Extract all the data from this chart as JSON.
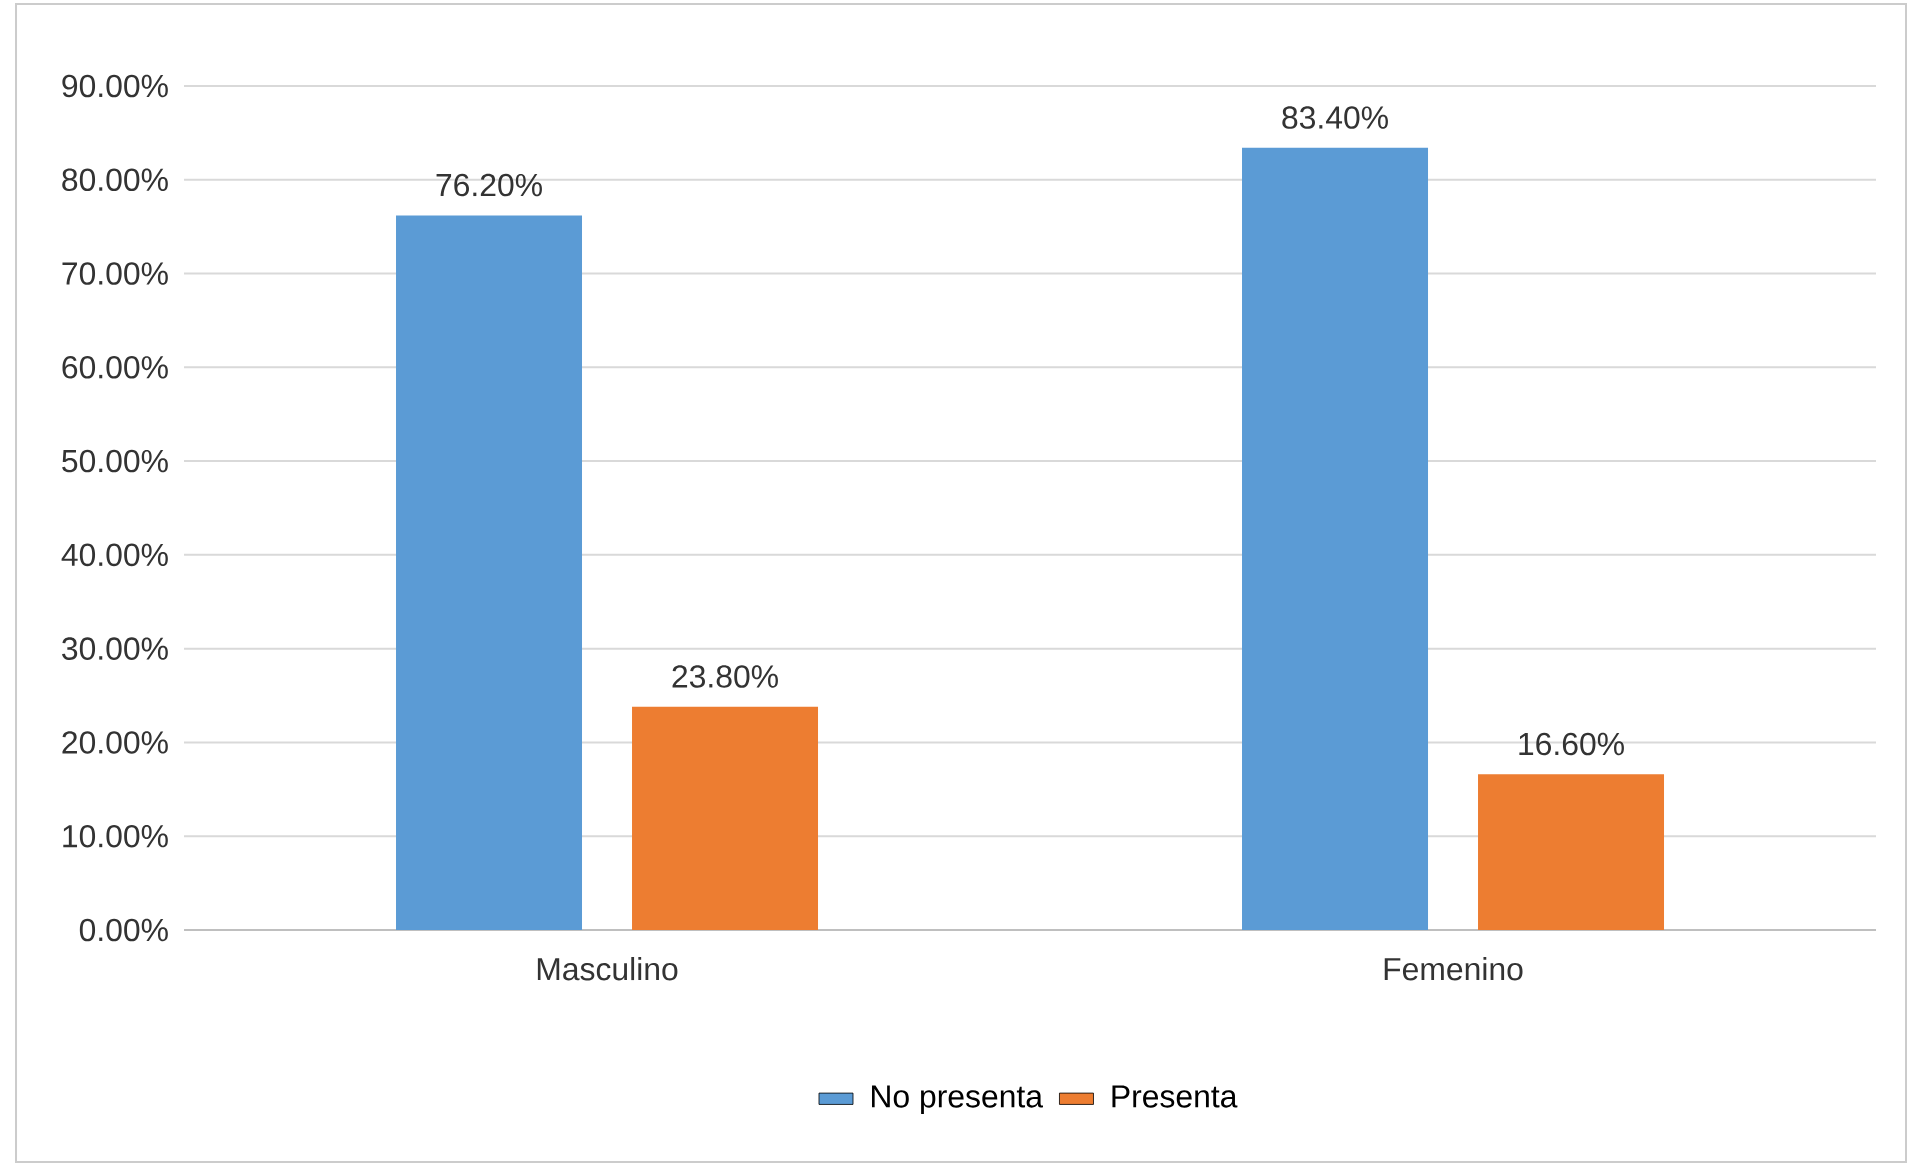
{
  "chart_data": {
    "type": "bar",
    "categories": [
      "Masculino",
      "Femenino"
    ],
    "series": [
      {
        "name": "No presenta",
        "color": "#5b9bd5",
        "values": [
          76.2,
          83.4
        ],
        "value_labels": [
          "76.20%",
          "83.40%"
        ]
      },
      {
        "name": "Presenta",
        "color": "#ed7d31",
        "values": [
          23.8,
          16.6
        ],
        "value_labels": [
          "23.80%",
          "16.60%"
        ]
      }
    ],
    "ylim": [
      0,
      90
    ],
    "yticks": [
      {
        "value": 0,
        "label": "0.00%"
      },
      {
        "value": 10,
        "label": "10.00%"
      },
      {
        "value": 20,
        "label": "20.00%"
      },
      {
        "value": 30,
        "label": "30.00%"
      },
      {
        "value": 40,
        "label": "40.00%"
      },
      {
        "value": 50,
        "label": "50.00%"
      },
      {
        "value": 60,
        "label": "60.00%"
      },
      {
        "value": 70,
        "label": "70.00%"
      },
      {
        "value": 80,
        "label": "80.00%"
      },
      {
        "value": 90,
        "label": "90.00%"
      }
    ],
    "grid": "y",
    "legend": "bottom"
  }
}
